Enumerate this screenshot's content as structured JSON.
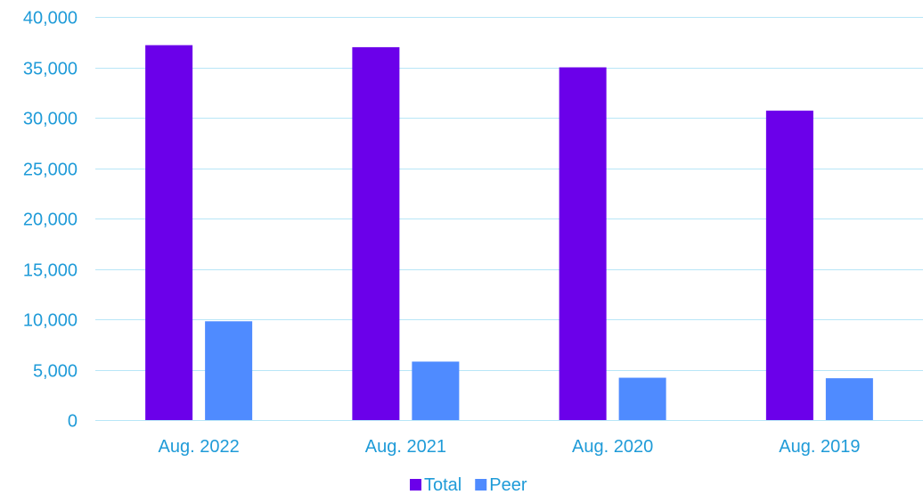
{
  "chart_data": {
    "type": "bar",
    "categories": [
      "Aug. 2022",
      "Aug. 2021",
      "Aug. 2020",
      "Aug. 2019"
    ],
    "series": [
      {
        "name": "Total",
        "values": [
          37200,
          37000,
          35000,
          30700
        ]
      },
      {
        "name": "Peer",
        "values": [
          9800,
          5800,
          4200,
          4150
        ]
      }
    ],
    "ylim": [
      0,
      40000
    ],
    "y_ticks": [
      "0",
      "5,000",
      "10,000",
      "15,000",
      "20,000",
      "25,000",
      "30,000",
      "35,000",
      "40,000"
    ],
    "grid": true,
    "legend_position": "bottom"
  },
  "colors": {
    "total": "#6B00EA",
    "peer": "#4F8BFF",
    "text": "#1F9BD8",
    "grid": "#B8E6F7"
  }
}
